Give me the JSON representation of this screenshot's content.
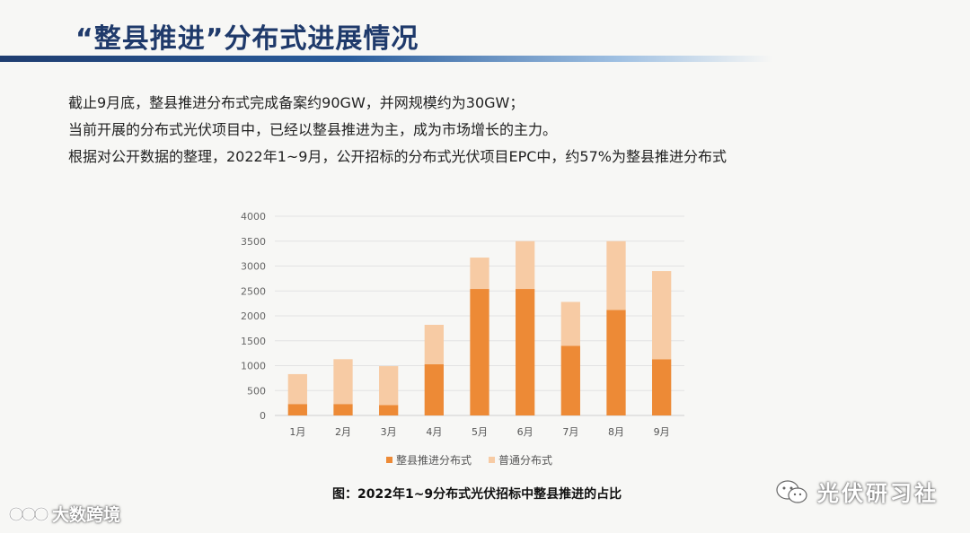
{
  "slide": {
    "title": "“整县推进”分布式进展情况",
    "bullets": [
      "截止9月底，整县推进分布式完成备案约90GW，并网规模约为30GW；",
      "当前开展的分布式光伏项目中，已经以整县推进为主，成为市场增长的主力。",
      "根据对公开数据的整理，2022年1~9月，公开招标的分布式光伏项目EPC中，约57%为整县推进分布式"
    ],
    "caption": "图：2022年1~9分布式光伏招标中整县推进的占比"
  },
  "watermarks": {
    "right": "光伏研习社",
    "left": "大数跨境"
  },
  "chart_data": {
    "type": "bar",
    "stacked": true,
    "categories": [
      "1月",
      "2月",
      "3月",
      "4月",
      "5月",
      "6月",
      "7月",
      "8月",
      "9月"
    ],
    "series": [
      {
        "name": "整县推进分布式",
        "color": "#ed8a36",
        "values": [
          230,
          230,
          210,
          1030,
          2540,
          2540,
          1400,
          2120,
          1130
        ]
      },
      {
        "name": "普通分布式",
        "color": "#f7cba4",
        "values": [
          600,
          900,
          780,
          790,
          630,
          960,
          880,
          1380,
          1770
        ]
      }
    ],
    "ylim": [
      0,
      4000
    ],
    "yticks": [
      0,
      500,
      1000,
      1500,
      2000,
      2500,
      3000,
      3500,
      4000
    ],
    "grid": true,
    "legend": "bottom"
  }
}
